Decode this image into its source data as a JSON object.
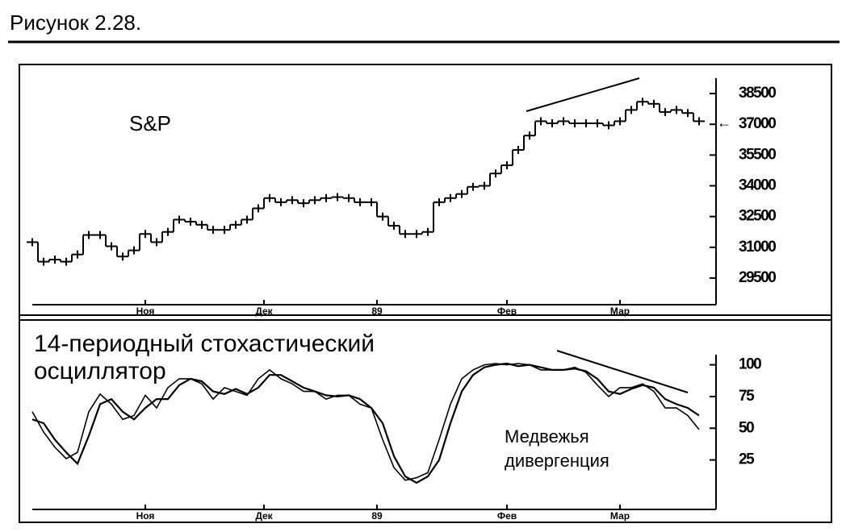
{
  "figure_title": "Рисунок 2.28.",
  "chart_data": [
    {
      "type": "step",
      "annotations": [
        "S&P"
      ],
      "color": "#000",
      "x": [
        0,
        1,
        2,
        3,
        4,
        5,
        6,
        7,
        8,
        9,
        10,
        11,
        12,
        13,
        14,
        15,
        16,
        17,
        18,
        19,
        20,
        21,
        22,
        23,
        24,
        25,
        26,
        27,
        28,
        29,
        30,
        31,
        32,
        33,
        34,
        35,
        36,
        37,
        38,
        39,
        40,
        41,
        42,
        43,
        44,
        45,
        46,
        47,
        48,
        49,
        50,
        51,
        52,
        53,
        54,
        55,
        56,
        57,
        58,
        59
      ],
      "values": [
        31250,
        30300,
        30400,
        30300,
        30650,
        31600,
        31600,
        31050,
        30550,
        30850,
        31650,
        31250,
        31750,
        32350,
        32250,
        32100,
        31850,
        31850,
        32100,
        32350,
        32900,
        33400,
        33200,
        33300,
        33150,
        33300,
        33400,
        33450,
        33400,
        33200,
        33200,
        32500,
        32050,
        31650,
        31650,
        31750,
        33200,
        33400,
        33600,
        33950,
        34000,
        34600,
        35000,
        35750,
        36450,
        37150,
        37050,
        37150,
        37050,
        37050,
        37050,
        36950,
        37150,
        37700,
        38100,
        38000,
        37600,
        37700,
        37550,
        37150
      ],
      "xlim": [
        0,
        60.5
      ],
      "xticks": [
        {
          "value": 10,
          "label": "Ноя"
        },
        {
          "value": 20.5,
          "label": "Дек"
        },
        {
          "value": 30.5,
          "label": "89"
        },
        {
          "value": 42,
          "label": "Фев"
        },
        {
          "value": 52,
          "label": "Мар"
        }
      ],
      "ylim": [
        28200,
        39250
      ],
      "yticks": [
        29500,
        31000,
        32500,
        34000,
        35500,
        37000,
        38500
      ]
    },
    {
      "type": "line",
      "annotations": [
        "14-периодный стохастический",
        "осциллятор",
        "Медвежья",
        "дивергенция"
      ],
      "x": [
        0,
        1,
        2,
        3,
        4,
        5,
        6,
        7,
        8,
        9,
        10,
        11,
        12,
        13,
        14,
        15,
        16,
        17,
        18,
        19,
        20,
        21,
        22,
        23,
        24,
        25,
        26,
        27,
        28,
        29,
        30,
        31,
        32,
        33,
        34,
        35,
        36,
        37,
        38,
        39,
        40,
        41,
        42,
        43,
        44,
        45,
        46,
        47,
        48,
        49,
        50,
        51,
        52,
        53,
        54,
        55,
        56,
        57,
        58,
        59
      ],
      "series": [
        {
          "color": "#000",
          "values": [
            63,
            47,
            35,
            26,
            31,
            63,
            77,
            69,
            57,
            60,
            76,
            66,
            82,
            89,
            89,
            85,
            73,
            82,
            79,
            76,
            89,
            96,
            89,
            85,
            79,
            79,
            73,
            76,
            76,
            69,
            66,
            41,
            19,
            9,
            11,
            15,
            41,
            69,
            89,
            96,
            100,
            101,
            100,
            101,
            100,
            96,
            96,
            96,
            98,
            94,
            84,
            75,
            82,
            82,
            85,
            79,
            66,
            66,
            60,
            49
          ]
        },
        {
          "color": "#000",
          "values": [
            57,
            54,
            41,
            31,
            22,
            44,
            69,
            73,
            63,
            57,
            66,
            73,
            73,
            84,
            89,
            87,
            79,
            77,
            81,
            77,
            82,
            92,
            92,
            87,
            82,
            79,
            76,
            75,
            76,
            73,
            66,
            54,
            28,
            12,
            7,
            12,
            25,
            54,
            79,
            92,
            98,
            100,
            101,
            99,
            100,
            98,
            96,
            96,
            97,
            95,
            89,
            79,
            77,
            81,
            84,
            82,
            73,
            69,
            66,
            60
          ]
        }
      ],
      "xlim": [
        0,
        60.5
      ],
      "xticks": [
        {
          "value": 10,
          "label": "Ноя"
        },
        {
          "value": 20.5,
          "label": "Дек"
        },
        {
          "value": 30.5,
          "label": "89"
        },
        {
          "value": 42,
          "label": "Фев"
        },
        {
          "value": 52,
          "label": "Мар"
        }
      ],
      "ylim": [
        -14,
        108
      ],
      "yticks": [
        25,
        50,
        75,
        100
      ]
    }
  ]
}
